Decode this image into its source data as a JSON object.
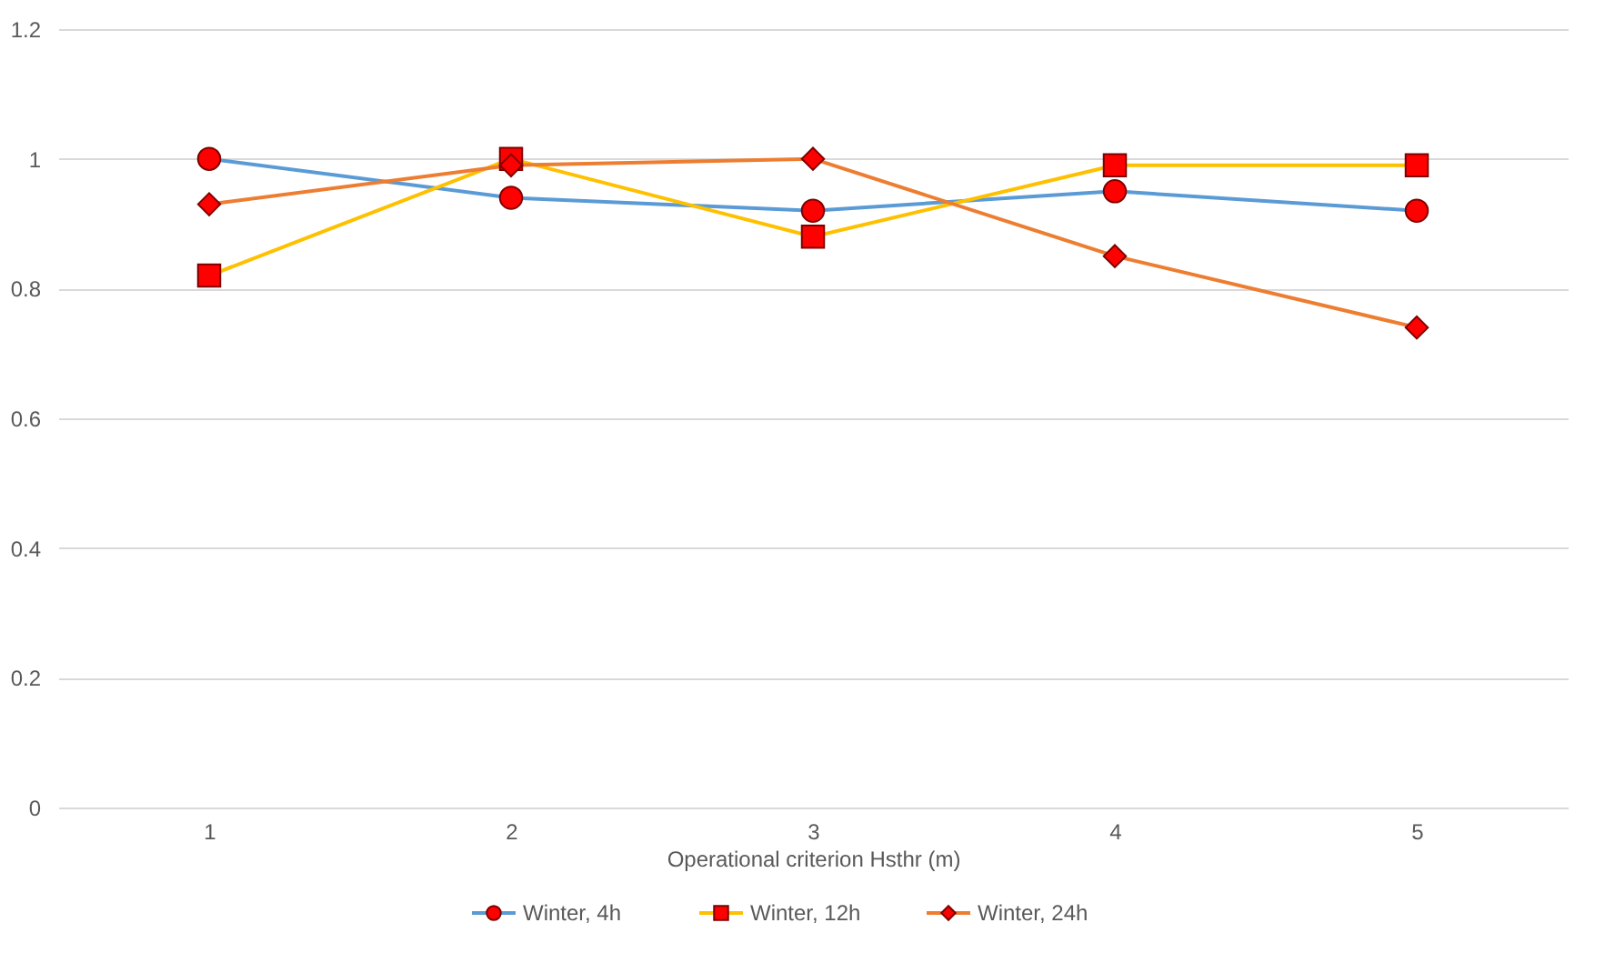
{
  "chart_data": {
    "type": "line",
    "xlabel": "Operational criterion Hsthr (m)",
    "categories": [
      "1",
      "2",
      "3",
      "4",
      "5"
    ],
    "series": [
      {
        "name": "Winter, 4h",
        "color": "#5b9bd5",
        "marker": "circle",
        "values": [
          1.0,
          0.94,
          0.92,
          0.95,
          0.92
        ]
      },
      {
        "name": "Winter, 12h",
        "color": "#ffc000",
        "marker": "square",
        "values": [
          0.82,
          1.0,
          0.88,
          0.99,
          0.99
        ]
      },
      {
        "name": "Winter, 24h",
        "color": "#ed7d31",
        "marker": "diamond",
        "values": [
          0.93,
          0.99,
          1.0,
          0.85,
          0.74
        ]
      }
    ],
    "ylim": [
      0,
      1.2
    ],
    "yticks": [
      0,
      0.2,
      0.4,
      0.6,
      0.8,
      1,
      1.2
    ],
    "grid": "y",
    "legend": "bottom",
    "line_style": "solid"
  }
}
